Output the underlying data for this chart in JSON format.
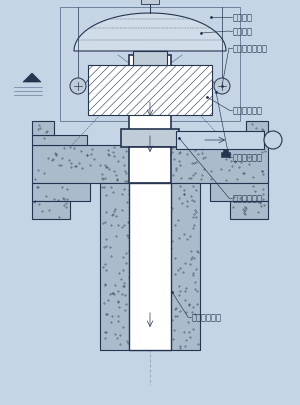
{
  "bg_color": "#c5d5e5",
  "line_color": "#253550",
  "concrete_color": "#aabbcc",
  "labels": {
    "frame": "フレーム",
    "float": "フロート",
    "guide_roller": "ガイドローラー",
    "pipe1": "启水管（１）",
    "pipe2": "启水管（２）",
    "pipe3": "启水管（３）",
    "pipe4": "启水管（４）"
  },
  "fontsize": 6.0
}
